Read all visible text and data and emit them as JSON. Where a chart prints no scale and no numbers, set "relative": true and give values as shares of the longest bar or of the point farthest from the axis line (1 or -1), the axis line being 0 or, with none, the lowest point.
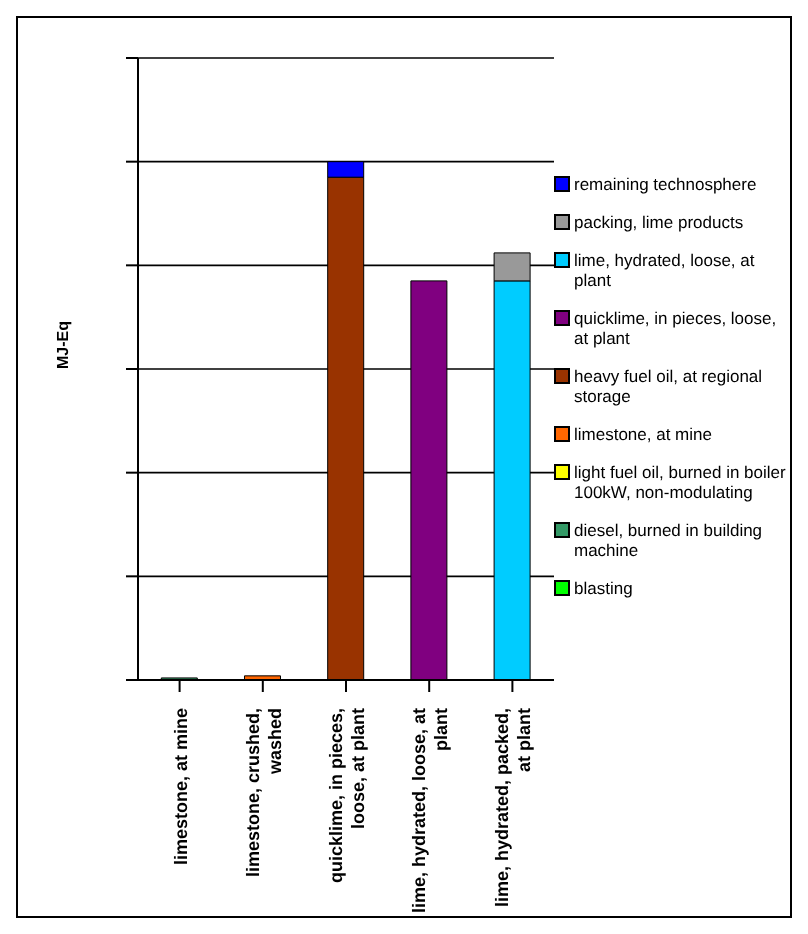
{
  "chart_data": {
    "type": "bar",
    "ylabel": "MJ-Eq",
    "relative": true,
    "stacked": true,
    "grid": "y",
    "legend": "right",
    "categories": [
      "limestone, at mine",
      "limestone, crushed, washed",
      "quicklime, in pieces, loose, at plant",
      "lime, hydrated, loose, at plant",
      "lime, hydrated, packed, at plant"
    ],
    "series": [
      {
        "name": "blasting",
        "color": "#00ff00",
        "values": [
          null,
          null,
          null,
          null,
          null
        ]
      },
      {
        "name": "diesel, burned in building machine",
        "color": "#339966",
        "values": [
          0.004,
          null,
          null,
          null,
          null
        ]
      },
      {
        "name": "light fuel oil, burned in boiler 100kW, non-modulating",
        "color": "#ffff00",
        "values": [
          null,
          null,
          null,
          null,
          null
        ]
      },
      {
        "name": "limestone, at mine",
        "color": "#ff6600",
        "values": [
          null,
          0.008,
          null,
          null,
          null
        ]
      },
      {
        "name": "heavy fuel oil, at regional storage",
        "color": "#993300",
        "values": [
          null,
          null,
          0.97,
          null,
          null
        ]
      },
      {
        "name": "quicklime, in pieces, loose, at plant",
        "color": "#800080",
        "values": [
          null,
          null,
          null,
          0.77,
          null
        ]
      },
      {
        "name": "lime, hydrated, loose, at plant",
        "color": "#00ccff",
        "values": [
          null,
          null,
          null,
          null,
          0.77
        ]
      },
      {
        "name": "packing, lime products",
        "color": "#999999",
        "values": [
          null,
          null,
          null,
          null,
          0.054
        ]
      },
      {
        "name": "remaining technosphere",
        "color": "#0000ff",
        "values": [
          null,
          null,
          0.03,
          null,
          null
        ]
      }
    ]
  }
}
